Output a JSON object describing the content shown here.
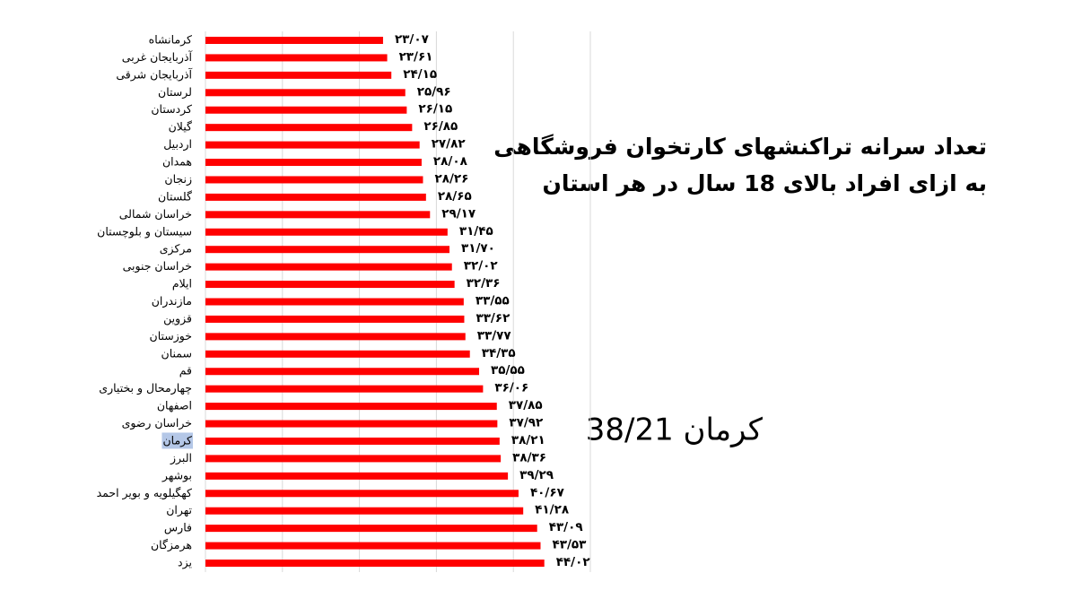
{
  "chart_data": {
    "type": "hbar",
    "title": "تعداد سرانه تراکنشهای کارتخوان فروشگاهی",
    "subtitle": "به ازای افراد بالای 18 سال در هر استان",
    "annotation": "کرمان 38/21",
    "categories": [
      "کرمانشاه",
      "آذربایجان غربی",
      "آذربایجان شرقی",
      "لرستان",
      "کردستان",
      "گیلان",
      "اردبیل",
      "همدان",
      "زنجان",
      "گلستان",
      "خراسان شمالی",
      "سیستان و بلوچستان",
      "مرکزی",
      "خراسان جنوبی",
      "ایلام",
      "مازندران",
      "قزوین",
      "خوزستان",
      "سمنان",
      "قم",
      "چهارمحال و بختیاری",
      "اصفهان",
      "خراسان رضوی",
      "کرمان",
      "البرز",
      "بوشهر",
      "کهگیلویه و بویر احمد",
      "تهران",
      "فارس",
      "هرمزگان",
      "یزد"
    ],
    "values": [
      23.07,
      23.61,
      24.15,
      25.96,
      26.15,
      26.85,
      27.82,
      28.08,
      28.26,
      28.65,
      29.17,
      31.45,
      31.7,
      32.02,
      32.36,
      33.55,
      33.62,
      33.77,
      34.35,
      35.55,
      36.06,
      37.85,
      37.92,
      38.21,
      38.36,
      39.29,
      40.67,
      41.28,
      43.09,
      43.53,
      44.02
    ],
    "value_labels": [
      "۲۳/۰۷",
      "۲۳/۶۱",
      "۲۴/۱۵",
      "۲۵/۹۶",
      "۲۶/۱۵",
      "۲۶/۸۵",
      "۲۷/۸۲",
      "۲۸/۰۸",
      "۲۸/۲۶",
      "۲۸/۶۵",
      "۲۹/۱۷",
      "۳۱/۴۵",
      "۳۱/۷۰",
      "۳۲/۰۲",
      "۳۲/۳۶",
      "۳۳/۵۵",
      "۳۳/۶۲",
      "۳۳/۷۷",
      "۳۴/۳۵",
      "۳۵/۵۵",
      "۳۶/۰۶",
      "۳۷/۸۵",
      "۳۷/۹۲",
      "۳۸/۲۱",
      "۳۸/۳۶",
      "۳۹/۲۹",
      "۴۰/۶۷",
      "۴۱/۲۸",
      "۴۳/۰۹",
      "۴۳/۵۳",
      "۴۴/۰۲"
    ],
    "color": "#ff0000",
    "highlight_index": 23,
    "highlight_color": "#b4c7e7",
    "xlim": [
      0,
      50
    ],
    "xticks": [
      0,
      10,
      20,
      30,
      40,
      50
    ],
    "grid": true
  }
}
